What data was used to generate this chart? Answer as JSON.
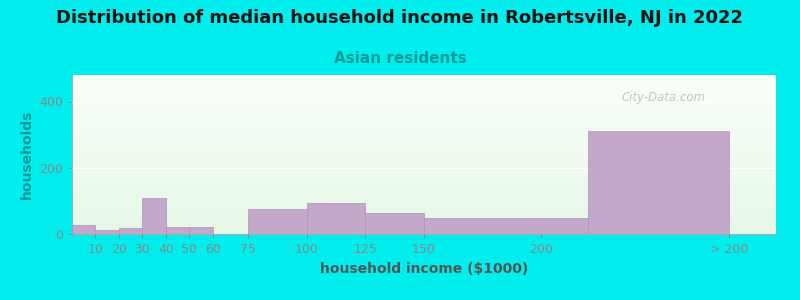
{
  "title": "Distribution of median household income in Robertsville, NJ in 2022",
  "subtitle": "Asian residents",
  "xlabel": "household income ($1000)",
  "ylabel": "households",
  "background_color": "#00EEEE",
  "bar_color": "#C3A8CC",
  "bar_edge_color": "#B090BB",
  "categories": [
    "10",
    "20",
    "30",
    "40",
    "50",
    "60",
    "75",
    "100",
    "125",
    "150",
    "200",
    "> 200"
  ],
  "values": [
    28,
    12,
    18,
    110,
    22,
    20,
    0,
    75,
    95,
    62,
    48,
    310
  ],
  "bar_lefts": [
    0,
    10,
    20,
    30,
    40,
    50,
    60,
    75,
    100,
    125,
    150,
    220
  ],
  "bar_widths": [
    10,
    10,
    10,
    10,
    10,
    10,
    15,
    25,
    25,
    25,
    70,
    60
  ],
  "tick_positions": [
    10,
    20,
    30,
    40,
    50,
    60,
    75,
    100,
    125,
    150,
    200,
    280
  ],
  "xlim": [
    0,
    300
  ],
  "ylim": [
    0,
    480
  ],
  "yticks": [
    0,
    200,
    400
  ],
  "watermark": "City-Data.com",
  "title_fontsize": 13,
  "subtitle_fontsize": 11,
  "axis_label_fontsize": 10,
  "tick_fontsize": 9,
  "ylabel_color": "#009999",
  "xlabel_color": "#555555",
  "title_color": "#111111",
  "subtitle_color": "#009999",
  "tick_color": "#555555"
}
